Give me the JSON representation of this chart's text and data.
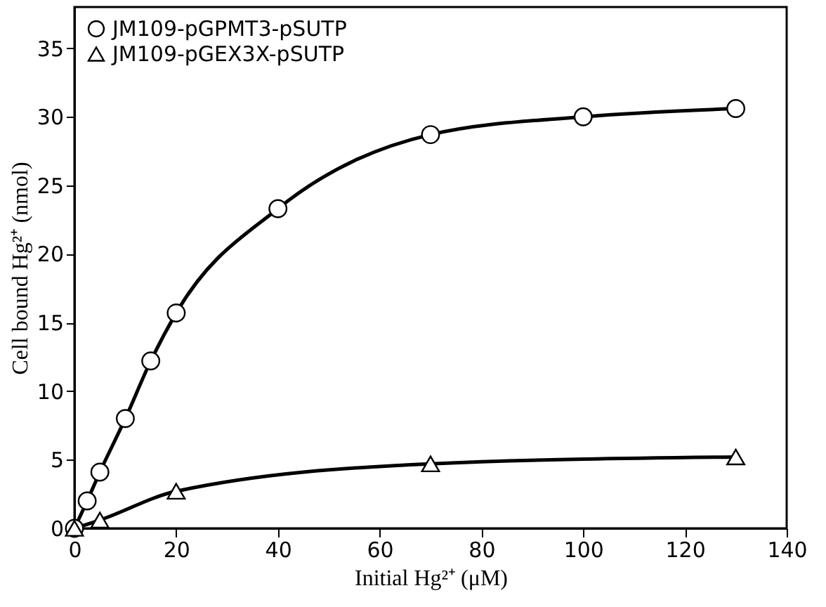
{
  "chart_data": {
    "type": "line",
    "xlabel": "Initial Hg²⁺ (μM)",
    "ylabel": "Cell bound Hg²⁺ (nmol)",
    "xlim": [
      0,
      140
    ],
    "xticks": [
      0,
      20,
      40,
      60,
      80,
      100,
      120,
      140
    ],
    "ylim": [
      0,
      38
    ],
    "yticks": [
      0,
      5,
      10,
      15,
      20,
      25,
      30,
      35
    ],
    "grid": false,
    "legend": "top left",
    "series": [
      {
        "name": "JM109-pGPMT3-pSUTP",
        "color": "#000000",
        "marker": "circle",
        "x": [
          0,
          2.5,
          5,
          10,
          15,
          20,
          40,
          70,
          100,
          130
        ],
        "values": [
          0,
          2.0,
          4.1,
          8.0,
          12.2,
          15.7,
          23.3,
          28.7,
          30.0,
          30.6
        ]
      },
      {
        "name": "JM109-pGEX3X-pSUTP",
        "color": "#000000",
        "marker": "triangle",
        "x": [
          0,
          5,
          20,
          70,
          130
        ],
        "values": [
          0,
          0.6,
          2.7,
          4.7,
          5.2
        ]
      }
    ]
  }
}
